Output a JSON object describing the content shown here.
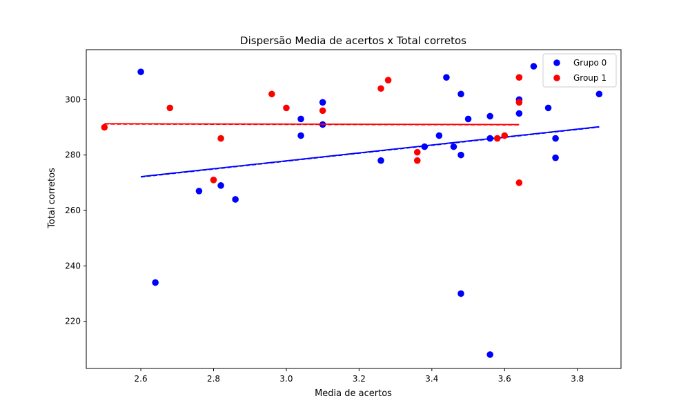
{
  "chart_data": {
    "type": "scatter",
    "title": "Dispersão Media de acertos x Total corretos",
    "xlabel": "Media de acertos",
    "ylabel": "Total corretos",
    "xlim": [
      2.45,
      3.92
    ],
    "ylim": [
      203,
      318
    ],
    "xticks": [
      2.6,
      2.8,
      3.0,
      3.2,
      3.4,
      3.6,
      3.8
    ],
    "xtick_labels": [
      "2.6",
      "2.8",
      "3.0",
      "3.2",
      "3.4",
      "3.6",
      "3.8"
    ],
    "yticks": [
      220,
      240,
      260,
      280,
      300
    ],
    "ytick_labels": [
      "220",
      "240",
      "260",
      "280",
      "300"
    ],
    "grid": false,
    "legend_position": "top-right",
    "series": [
      {
        "name": "Grupo 0",
        "color": "#0000ff",
        "points": [
          [
            2.6,
            310
          ],
          [
            2.64,
            234
          ],
          [
            2.76,
            267
          ],
          [
            2.82,
            269
          ],
          [
            2.86,
            264
          ],
          [
            3.04,
            293
          ],
          [
            3.04,
            287
          ],
          [
            3.1,
            299
          ],
          [
            3.1,
            291
          ],
          [
            3.26,
            278
          ],
          [
            3.38,
            283
          ],
          [
            3.42,
            287
          ],
          [
            3.44,
            308
          ],
          [
            3.46,
            283
          ],
          [
            3.48,
            302
          ],
          [
            3.48,
            280
          ],
          [
            3.48,
            230
          ],
          [
            3.5,
            293
          ],
          [
            3.56,
            294
          ],
          [
            3.56,
            286
          ],
          [
            3.56,
            208
          ],
          [
            3.64,
            300
          ],
          [
            3.64,
            295
          ],
          [
            3.68,
            312
          ],
          [
            3.72,
            297
          ],
          [
            3.74,
            286
          ],
          [
            3.74,
            279
          ],
          [
            3.86,
            302
          ]
        ],
        "fit_line": [
          [
            2.6,
            272.2
          ],
          [
            3.86,
            290.2
          ]
        ]
      },
      {
        "name": "Group 1",
        "color": "#ff0000",
        "points": [
          [
            2.5,
            290
          ],
          [
            2.68,
            297
          ],
          [
            2.8,
            271
          ],
          [
            2.82,
            286
          ],
          [
            2.96,
            302
          ],
          [
            3.0,
            297
          ],
          [
            3.1,
            296
          ],
          [
            3.26,
            304
          ],
          [
            3.28,
            307
          ],
          [
            3.36,
            281
          ],
          [
            3.36,
            278
          ],
          [
            3.58,
            286
          ],
          [
            3.6,
            287
          ],
          [
            3.64,
            308
          ],
          [
            3.64,
            299
          ],
          [
            3.64,
            270
          ]
        ],
        "fit_line": [
          [
            2.5,
            291.3
          ],
          [
            3.64,
            291.0
          ]
        ]
      }
    ]
  }
}
